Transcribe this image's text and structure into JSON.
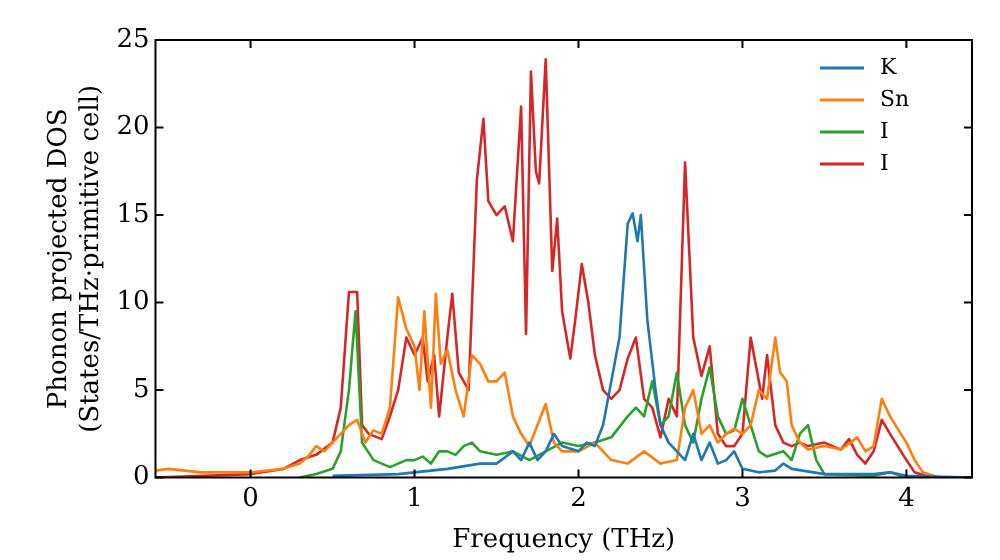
{
  "chart_data": {
    "type": "line",
    "xlabel": "Frequency (THz)",
    "ylabel": "Phonon projected DOS\n(States/THz·primitive cell)",
    "xlim": [
      -0.58,
      4.4
    ],
    "xticks": [
      0,
      1,
      2,
      3,
      4
    ],
    "ylim": [
      0,
      25
    ],
    "yticks": [
      0,
      5,
      10,
      15,
      20,
      25
    ],
    "grid": false,
    "legend": "top right",
    "marker": "none",
    "line_style": "solid",
    "series": [
      {
        "name": "K",
        "color": "#1f77b4",
        "x": [
          0.5,
          0.9,
          1.0,
          1.2,
          1.4,
          1.5,
          1.6,
          1.65,
          1.7,
          1.75,
          1.8,
          1.85,
          1.9,
          2.0,
          2.05,
          2.1,
          2.15,
          2.2,
          2.25,
          2.3,
          2.33,
          2.36,
          2.38,
          2.42,
          2.47,
          2.5,
          2.55,
          2.6,
          2.65,
          2.7,
          2.75,
          2.8,
          2.85,
          2.9,
          2.95,
          3.0,
          3.1,
          3.2,
          3.25,
          3.3,
          3.5,
          3.8,
          3.9,
          4.0,
          4.4
        ],
        "values": [
          0.1,
          0.2,
          0.3,
          0.5,
          0.8,
          0.8,
          1.5,
          1,
          2,
          1,
          1.5,
          2.5,
          1.8,
          1.5,
          2,
          1.8,
          3,
          5.5,
          8,
          14.5,
          15.1,
          13.5,
          15,
          9,
          5,
          3,
          2,
          1.5,
          1,
          2.5,
          1,
          2,
          0.8,
          1,
          1.5,
          0.5,
          0.3,
          0.4,
          0.8,
          0.5,
          0.2,
          0.2,
          0.3,
          0.1,
          0
        ]
      },
      {
        "name": "Sn",
        "color": "#ff7f0e",
        "x": [
          -0.58,
          -0.5,
          -0.3,
          0,
          0.2,
          0.3,
          0.35,
          0.4,
          0.45,
          0.55,
          0.6,
          0.65,
          0.7,
          0.75,
          0.8,
          0.85,
          0.9,
          0.95,
          1.0,
          1.03,
          1.06,
          1.1,
          1.13,
          1.16,
          1.2,
          1.25,
          1.3,
          1.35,
          1.4,
          1.45,
          1.5,
          1.55,
          1.6,
          1.65,
          1.7,
          1.75,
          1.8,
          1.85,
          1.9,
          2.0,
          2.1,
          2.2,
          2.3,
          2.4,
          2.5,
          2.6,
          2.65,
          2.7,
          2.75,
          2.8,
          2.85,
          2.9,
          2.95,
          3.0,
          3.05,
          3.1,
          3.15,
          3.2,
          3.23,
          3.27,
          3.3,
          3.35,
          3.4,
          3.5,
          3.6,
          3.7,
          3.75,
          3.8,
          3.85,
          3.9,
          4.0,
          4.05,
          4.1,
          4.2,
          4.4
        ],
        "values": [
          0.4,
          0.5,
          0.3,
          0.3,
          0.5,
          0.8,
          1.2,
          1.8,
          1.5,
          2.5,
          3,
          3.3,
          2,
          2.7,
          2.5,
          4,
          10.3,
          8.5,
          7.5,
          5,
          9.5,
          4,
          10.5,
          6.5,
          7.3,
          5,
          3.5,
          7,
          6.5,
          5.5,
          5.5,
          6,
          3.5,
          2.5,
          1.8,
          3,
          4.2,
          2,
          1.5,
          1.5,
          2,
          1,
          0.8,
          1.5,
          0.8,
          1,
          4,
          5,
          2.5,
          3,
          2,
          2.5,
          2.8,
          2.5,
          3,
          5,
          4.5,
          8,
          6,
          5.5,
          3,
          2,
          1.6,
          1.8,
          1.6,
          2.3,
          1.5,
          1.8,
          4.5,
          3.5,
          2,
          1,
          0.3,
          0,
          0
        ]
      },
      {
        "name": "I",
        "color": "#2ca02c",
        "x": [
          0.3,
          0.4,
          0.5,
          0.55,
          0.6,
          0.64,
          0.68,
          0.75,
          0.85,
          0.95,
          1.0,
          1.05,
          1.1,
          1.15,
          1.2,
          1.25,
          1.3,
          1.35,
          1.4,
          1.5,
          1.6,
          1.7,
          1.8,
          1.9,
          2.0,
          2.1,
          2.2,
          2.3,
          2.35,
          2.4,
          2.45,
          2.5,
          2.55,
          2.6,
          2.65,
          2.7,
          2.75,
          2.8,
          2.85,
          2.9,
          2.95,
          3.0,
          3.05,
          3.1,
          3.15,
          3.25,
          3.3,
          3.35,
          3.4,
          3.45,
          3.5,
          3.8,
          3.9,
          4.0,
          4.4
        ],
        "values": [
          0,
          0.2,
          0.5,
          1.5,
          5,
          9.5,
          2,
          1,
          0.6,
          1,
          1,
          1.2,
          0.8,
          1.5,
          1.5,
          1.3,
          1.8,
          2,
          1.5,
          1.3,
          1.5,
          1,
          1.5,
          2,
          1.8,
          2,
          2.3,
          3.5,
          4,
          3.5,
          5.5,
          3,
          3.5,
          6,
          3,
          2,
          4.5,
          6.3,
          3.5,
          2.5,
          2.7,
          4.5,
          3,
          1.5,
          1.2,
          1.5,
          1,
          2.5,
          3,
          1,
          0.2,
          0.1,
          0.3,
          0,
          0
        ]
      },
      {
        "name": "I",
        "color": "#d62728",
        "x": [
          -0.58,
          0,
          0.2,
          0.3,
          0.4,
          0.5,
          0.55,
          0.6,
          0.65,
          0.68,
          0.72,
          0.8,
          0.85,
          0.9,
          0.95,
          1.0,
          1.05,
          1.08,
          1.12,
          1.15,
          1.2,
          1.23,
          1.27,
          1.33,
          1.38,
          1.42,
          1.45,
          1.5,
          1.55,
          1.6,
          1.65,
          1.68,
          1.71,
          1.74,
          1.76,
          1.8,
          1.84,
          1.87,
          1.9,
          1.95,
          1.98,
          2.02,
          2.06,
          2.1,
          2.15,
          2.2,
          2.25,
          2.3,
          2.35,
          2.4,
          2.45,
          2.5,
          2.55,
          2.6,
          2.65,
          2.7,
          2.75,
          2.8,
          2.85,
          2.9,
          2.95,
          3.0,
          3.05,
          3.08,
          3.12,
          3.15,
          3.2,
          3.25,
          3.3,
          3.35,
          3.4,
          3.5,
          3.6,
          3.65,
          3.7,
          3.75,
          3.8,
          3.85,
          3.9,
          4.0,
          4.05,
          4.15,
          4.4
        ],
        "values": [
          0,
          0.2,
          0.5,
          1.0,
          1.3,
          2.0,
          4,
          10.6,
          10.6,
          3,
          2.5,
          2.2,
          3.5,
          5,
          8,
          7,
          8,
          5.5,
          7,
          3.5,
          8,
          10.5,
          6,
          5,
          17,
          20.5,
          15.8,
          15,
          15.5,
          13.5,
          21.2,
          8.2,
          23.2,
          17.5,
          16.8,
          23.9,
          11.8,
          14.8,
          9.5,
          6.8,
          9,
          12.2,
          10,
          7,
          5,
          4.5,
          5,
          6.8,
          8,
          4.5,
          4,
          2.3,
          4.5,
          3.5,
          18,
          8,
          5.8,
          7.5,
          2.5,
          1.8,
          1.8,
          2.5,
          8,
          6.5,
          4.5,
          7,
          3,
          2,
          1.8,
          2,
          1.8,
          2,
          1.6,
          2.2,
          1.3,
          0.8,
          1.5,
          3.3,
          2.5,
          1,
          0.3,
          0,
          0
        ]
      }
    ]
  }
}
